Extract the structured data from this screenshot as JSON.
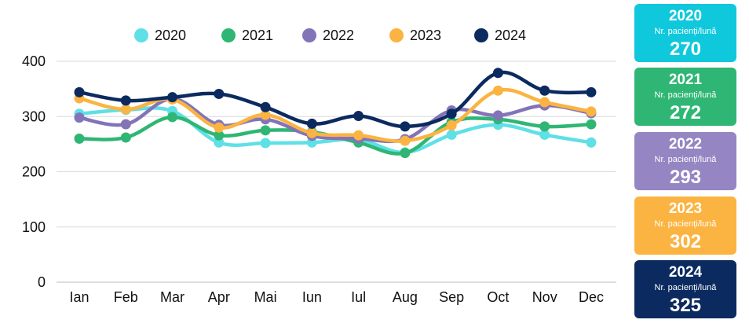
{
  "chart_data": {
    "type": "line",
    "title": "",
    "xlabel": "",
    "ylabel": "",
    "ylim": [
      0,
      400
    ],
    "yticks": [
      0,
      100,
      200,
      300,
      400
    ],
    "grid": true,
    "legend_position": "top",
    "categories": [
      "Ian",
      "Feb",
      "Mar",
      "Apr",
      "Mai",
      "Iun",
      "Iul",
      "Aug",
      "Sep",
      "Oct",
      "Nov",
      "Dec"
    ],
    "series": [
      {
        "name": "2020",
        "color": "#5ee0e6",
        "values": [
          305,
          312,
          310,
          253,
          252,
          253,
          258,
          235,
          267,
          285,
          267,
          253
        ]
      },
      {
        "name": "2021",
        "color": "#2fb674",
        "values": [
          260,
          262,
          299,
          266,
          275,
          272,
          253,
          234,
          290,
          295,
          282,
          286
        ]
      },
      {
        "name": "2022",
        "color": "#8374b8",
        "values": [
          298,
          286,
          332,
          285,
          295,
          265,
          260,
          259,
          311,
          302,
          320,
          306
        ]
      },
      {
        "name": "2023",
        "color": "#fbb441",
        "values": [
          333,
          313,
          331,
          280,
          303,
          270,
          266,
          256,
          284,
          347,
          326,
          309
        ]
      },
      {
        "name": "2024",
        "color": "#0b2a5f",
        "values": [
          344,
          329,
          335,
          341,
          317,
          287,
          301,
          282,
          305,
          379,
          347,
          344
        ]
      }
    ]
  },
  "summary": {
    "label": "Nr. pacienți/lună",
    "cards": [
      {
        "year": "2020",
        "value": "270",
        "color": "#10c8dc"
      },
      {
        "year": "2021",
        "value": "272",
        "color": "#2fb674"
      },
      {
        "year": "2022",
        "value": "293",
        "color": "#9585c2"
      },
      {
        "year": "2023",
        "value": "302",
        "color": "#fbb441"
      },
      {
        "year": "2024",
        "value": "325",
        "color": "#0b2a5f"
      }
    ]
  }
}
